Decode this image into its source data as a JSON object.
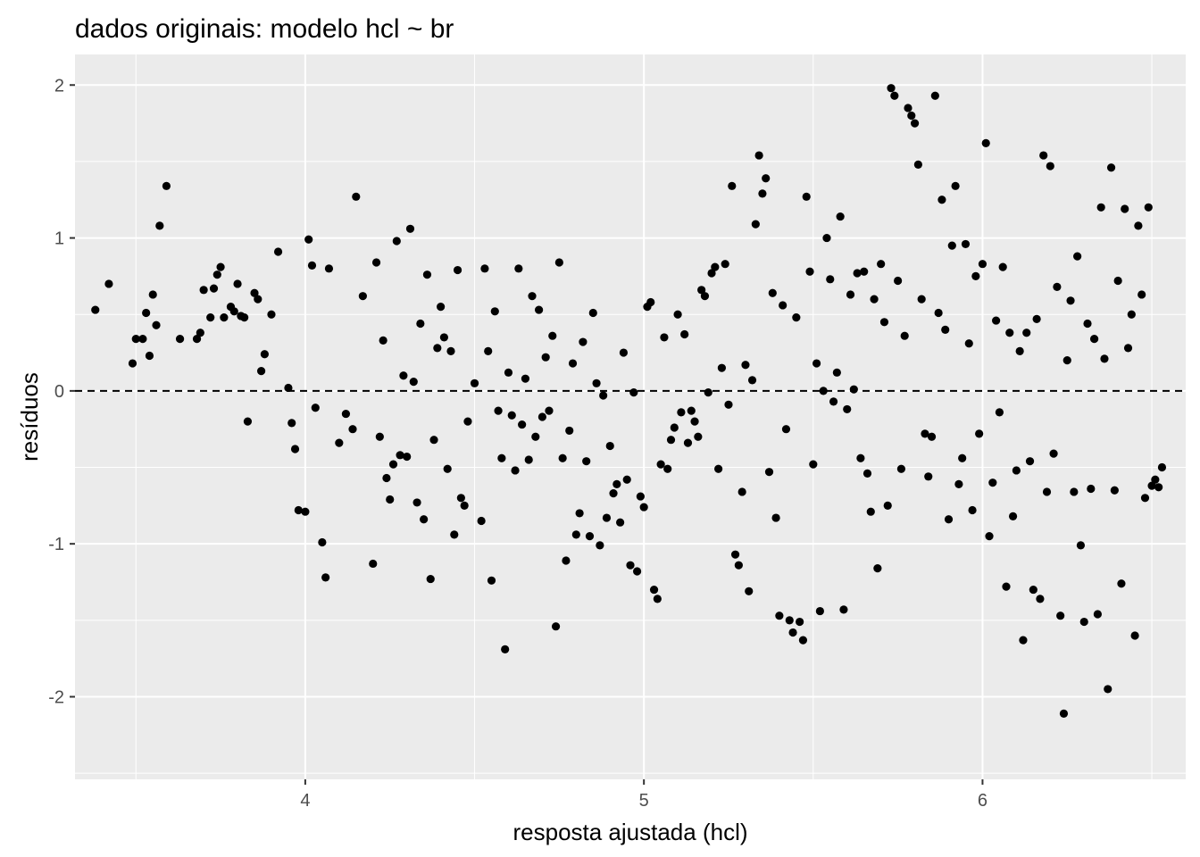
{
  "chart_data": {
    "type": "scatter",
    "title": "dados originais: modelo hcl ~ br",
    "xlabel": "resposta ajustada (hcl)",
    "ylabel": "resíduos",
    "xlim": [
      3.32,
      6.6
    ],
    "ylim": [
      -2.54,
      2.2
    ],
    "x_ticks": [
      4,
      5,
      6
    ],
    "x_tick_labels": [
      "4",
      "5",
      "6"
    ],
    "y_ticks": [
      -2,
      -1,
      0,
      1,
      2
    ],
    "y_tick_labels": [
      "-2",
      "-1",
      "0",
      "1",
      "2"
    ],
    "reference_line": {
      "y": 0,
      "style": "dashed"
    },
    "grid": true,
    "legend": "none",
    "colors": {
      "panel": "#ebebeb",
      "grid": "#ffffff",
      "points": "#000000"
    },
    "series": [
      {
        "points": [
          [
            3.38,
            0.53
          ],
          [
            3.42,
            0.7
          ],
          [
            3.49,
            0.18
          ],
          [
            3.5,
            0.34
          ],
          [
            3.52,
            0.34
          ],
          [
            3.53,
            0.51
          ],
          [
            3.54,
            0.23
          ],
          [
            3.55,
            0.63
          ],
          [
            3.56,
            0.43
          ],
          [
            3.57,
            1.08
          ],
          [
            3.59,
            1.34
          ],
          [
            3.63,
            0.34
          ],
          [
            3.68,
            0.34
          ],
          [
            3.69,
            0.38
          ],
          [
            3.7,
            0.66
          ],
          [
            3.72,
            0.48
          ],
          [
            3.73,
            0.67
          ],
          [
            3.74,
            0.76
          ],
          [
            3.75,
            0.81
          ],
          [
            3.76,
            0.48
          ],
          [
            3.78,
            0.55
          ],
          [
            3.79,
            0.52
          ],
          [
            3.8,
            0.7
          ],
          [
            3.81,
            0.49
          ],
          [
            3.82,
            0.48
          ],
          [
            3.83,
            -0.2
          ],
          [
            3.85,
            0.64
          ],
          [
            3.86,
            0.6
          ],
          [
            3.87,
            0.13
          ],
          [
            3.88,
            0.24
          ],
          [
            3.9,
            0.5
          ],
          [
            3.92,
            0.91
          ],
          [
            3.95,
            0.02
          ],
          [
            3.96,
            -0.21
          ],
          [
            3.97,
            -0.38
          ],
          [
            3.98,
            -0.78
          ],
          [
            4.0,
            -0.79
          ],
          [
            4.01,
            0.99
          ],
          [
            4.02,
            0.82
          ],
          [
            4.03,
            -0.11
          ],
          [
            4.05,
            -0.99
          ],
          [
            4.06,
            -1.22
          ],
          [
            4.07,
            0.8
          ],
          [
            4.1,
            -0.34
          ],
          [
            4.12,
            -0.15
          ],
          [
            4.14,
            -0.25
          ],
          [
            4.15,
            1.27
          ],
          [
            4.17,
            0.62
          ],
          [
            4.2,
            -1.13
          ],
          [
            4.21,
            0.84
          ],
          [
            4.22,
            -0.3
          ],
          [
            4.23,
            0.33
          ],
          [
            4.24,
            -0.57
          ],
          [
            4.25,
            -0.71
          ],
          [
            4.26,
            -0.48
          ],
          [
            4.27,
            0.98
          ],
          [
            4.28,
            -0.42
          ],
          [
            4.29,
            0.1
          ],
          [
            4.3,
            -0.43
          ],
          [
            4.31,
            1.06
          ],
          [
            4.32,
            0.06
          ],
          [
            4.33,
            -0.73
          ],
          [
            4.34,
            0.44
          ],
          [
            4.35,
            -0.84
          ],
          [
            4.36,
            0.76
          ],
          [
            4.37,
            -1.23
          ],
          [
            4.38,
            -0.32
          ],
          [
            4.39,
            0.28
          ],
          [
            4.4,
            0.55
          ],
          [
            4.41,
            0.35
          ],
          [
            4.42,
            -0.51
          ],
          [
            4.43,
            0.26
          ],
          [
            4.44,
            -0.94
          ],
          [
            4.45,
            0.79
          ],
          [
            4.46,
            -0.7
          ],
          [
            4.47,
            -0.75
          ],
          [
            4.48,
            -0.2
          ],
          [
            4.5,
            0.05
          ],
          [
            4.52,
            -0.85
          ],
          [
            4.53,
            0.8
          ],
          [
            4.54,
            0.26
          ],
          [
            4.55,
            -1.24
          ],
          [
            4.56,
            0.52
          ],
          [
            4.57,
            -0.13
          ],
          [
            4.58,
            -0.44
          ],
          [
            4.59,
            -1.69
          ],
          [
            4.6,
            0.12
          ],
          [
            4.61,
            -0.16
          ],
          [
            4.62,
            -0.52
          ],
          [
            4.63,
            0.8
          ],
          [
            4.64,
            -0.22
          ],
          [
            4.65,
            0.08
          ],
          [
            4.66,
            -0.45
          ],
          [
            4.67,
            0.62
          ],
          [
            4.68,
            -0.3
          ],
          [
            4.69,
            0.53
          ],
          [
            4.7,
            -0.17
          ],
          [
            4.71,
            0.22
          ],
          [
            4.72,
            -0.13
          ],
          [
            4.73,
            0.36
          ],
          [
            4.74,
            -1.54
          ],
          [
            4.75,
            0.84
          ],
          [
            4.76,
            -0.44
          ],
          [
            4.77,
            -1.11
          ],
          [
            4.78,
            -0.26
          ],
          [
            4.79,
            0.18
          ],
          [
            4.8,
            -0.94
          ],
          [
            4.81,
            -0.8
          ],
          [
            4.82,
            0.32
          ],
          [
            4.83,
            -0.46
          ],
          [
            4.84,
            -0.95
          ],
          [
            4.85,
            0.51
          ],
          [
            4.86,
            0.05
          ],
          [
            4.87,
            -1.01
          ],
          [
            4.88,
            -0.03
          ],
          [
            4.89,
            -0.83
          ],
          [
            4.9,
            -0.36
          ],
          [
            4.91,
            -0.67
          ],
          [
            4.92,
            -0.61
          ],
          [
            4.93,
            -0.86
          ],
          [
            4.94,
            0.25
          ],
          [
            4.95,
            -0.58
          ],
          [
            4.96,
            -1.14
          ],
          [
            4.97,
            -0.01
          ],
          [
            4.98,
            -1.18
          ],
          [
            4.99,
            -0.69
          ],
          [
            5.0,
            -0.76
          ],
          [
            5.01,
            0.55
          ],
          [
            5.02,
            0.58
          ],
          [
            5.03,
            -1.3
          ],
          [
            5.04,
            -1.36
          ],
          [
            5.05,
            -0.48
          ],
          [
            5.06,
            0.35
          ],
          [
            5.07,
            -0.51
          ],
          [
            5.08,
            -0.32
          ],
          [
            5.09,
            -0.24
          ],
          [
            5.1,
            0.5
          ],
          [
            5.11,
            -0.14
          ],
          [
            5.12,
            0.37
          ],
          [
            5.13,
            -0.34
          ],
          [
            5.14,
            -0.13
          ],
          [
            5.15,
            -0.2
          ],
          [
            5.16,
            -0.3
          ],
          [
            5.17,
            0.66
          ],
          [
            5.18,
            0.62
          ],
          [
            5.19,
            -0.01
          ],
          [
            5.2,
            0.77
          ],
          [
            5.21,
            0.81
          ],
          [
            5.22,
            -0.51
          ],
          [
            5.23,
            0.15
          ],
          [
            5.24,
            0.83
          ],
          [
            5.25,
            -0.09
          ],
          [
            5.26,
            1.34
          ],
          [
            5.27,
            -1.07
          ],
          [
            5.28,
            -1.14
          ],
          [
            5.29,
            -0.66
          ],
          [
            5.3,
            0.17
          ],
          [
            5.31,
            -1.31
          ],
          [
            5.32,
            0.07
          ],
          [
            5.33,
            1.09
          ],
          [
            5.34,
            1.54
          ],
          [
            5.35,
            1.29
          ],
          [
            5.36,
            1.39
          ],
          [
            5.37,
            -0.53
          ],
          [
            5.38,
            0.64
          ],
          [
            5.39,
            -0.83
          ],
          [
            5.4,
            -1.47
          ],
          [
            5.41,
            0.56
          ],
          [
            5.42,
            -0.25
          ],
          [
            5.43,
            -1.5
          ],
          [
            5.44,
            -1.58
          ],
          [
            5.45,
            0.48
          ],
          [
            5.46,
            -1.51
          ],
          [
            5.47,
            -1.63
          ],
          [
            5.48,
            1.27
          ],
          [
            5.49,
            0.78
          ],
          [
            5.5,
            -0.48
          ],
          [
            5.51,
            0.18
          ],
          [
            5.52,
            -1.44
          ],
          [
            5.53,
            0.0
          ],
          [
            5.54,
            1.0
          ],
          [
            5.55,
            0.73
          ],
          [
            5.56,
            -0.07
          ],
          [
            5.57,
            0.12
          ],
          [
            5.58,
            1.14
          ],
          [
            5.59,
            -1.43
          ],
          [
            5.6,
            -0.12
          ],
          [
            5.61,
            0.63
          ],
          [
            5.62,
            0.01
          ],
          [
            5.63,
            0.77
          ],
          [
            5.64,
            -0.44
          ],
          [
            5.65,
            0.78
          ],
          [
            5.66,
            -0.54
          ],
          [
            5.67,
            -0.79
          ],
          [
            5.68,
            0.6
          ],
          [
            5.69,
            -1.16
          ],
          [
            5.7,
            0.83
          ],
          [
            5.71,
            0.45
          ],
          [
            5.72,
            -0.75
          ],
          [
            5.73,
            1.98
          ],
          [
            5.74,
            1.93
          ],
          [
            5.75,
            0.72
          ],
          [
            5.76,
            -0.51
          ],
          [
            5.77,
            0.36
          ],
          [
            5.78,
            1.85
          ],
          [
            5.79,
            1.8
          ],
          [
            5.8,
            1.75
          ],
          [
            5.81,
            1.48
          ],
          [
            5.82,
            0.6
          ],
          [
            5.83,
            -0.28
          ],
          [
            5.84,
            -0.56
          ],
          [
            5.85,
            -0.3
          ],
          [
            5.86,
            1.93
          ],
          [
            5.87,
            0.51
          ],
          [
            5.88,
            1.25
          ],
          [
            5.89,
            0.4
          ],
          [
            5.9,
            -0.84
          ],
          [
            5.91,
            0.95
          ],
          [
            5.92,
            1.34
          ],
          [
            5.93,
            -0.61
          ],
          [
            5.94,
            -0.44
          ],
          [
            5.95,
            0.96
          ],
          [
            5.96,
            0.31
          ],
          [
            5.97,
            -0.78
          ],
          [
            5.98,
            0.75
          ],
          [
            5.99,
            -0.28
          ],
          [
            6.0,
            0.83
          ],
          [
            6.01,
            1.62
          ],
          [
            6.02,
            -0.95
          ],
          [
            6.03,
            -0.6
          ],
          [
            6.04,
            0.46
          ],
          [
            6.05,
            -0.14
          ],
          [
            6.06,
            0.81
          ],
          [
            6.07,
            -1.28
          ],
          [
            6.08,
            0.38
          ],
          [
            6.09,
            -0.82
          ],
          [
            6.1,
            -0.52
          ],
          [
            6.11,
            0.26
          ],
          [
            6.12,
            -1.63
          ],
          [
            6.13,
            0.38
          ],
          [
            6.14,
            -0.46
          ],
          [
            6.15,
            -1.3
          ],
          [
            6.16,
            0.47
          ],
          [
            6.17,
            -1.36
          ],
          [
            6.18,
            1.54
          ],
          [
            6.19,
            -0.66
          ],
          [
            6.2,
            1.47
          ],
          [
            6.21,
            -0.41
          ],
          [
            6.22,
            0.68
          ],
          [
            6.23,
            -1.47
          ],
          [
            6.24,
            -2.11
          ],
          [
            6.25,
            0.2
          ],
          [
            6.26,
            0.59
          ],
          [
            6.27,
            -0.66
          ],
          [
            6.28,
            0.88
          ],
          [
            6.29,
            -1.01
          ],
          [
            6.3,
            -1.51
          ],
          [
            6.31,
            0.44
          ],
          [
            6.32,
            -0.64
          ],
          [
            6.33,
            0.34
          ],
          [
            6.34,
            -1.46
          ],
          [
            6.35,
            1.2
          ],
          [
            6.36,
            0.21
          ],
          [
            6.37,
            -1.95
          ],
          [
            6.38,
            1.46
          ],
          [
            6.39,
            -0.65
          ],
          [
            6.4,
            0.72
          ],
          [
            6.41,
            -1.26
          ],
          [
            6.42,
            1.19
          ],
          [
            6.43,
            0.28
          ],
          [
            6.44,
            0.5
          ],
          [
            6.45,
            -1.6
          ],
          [
            6.46,
            1.08
          ],
          [
            6.47,
            0.63
          ],
          [
            6.48,
            -0.7
          ],
          [
            6.49,
            1.2
          ],
          [
            6.5,
            -0.62
          ],
          [
            6.51,
            -0.58
          ],
          [
            6.52,
            -0.63
          ],
          [
            6.53,
            -0.5
          ]
        ]
      }
    ]
  }
}
